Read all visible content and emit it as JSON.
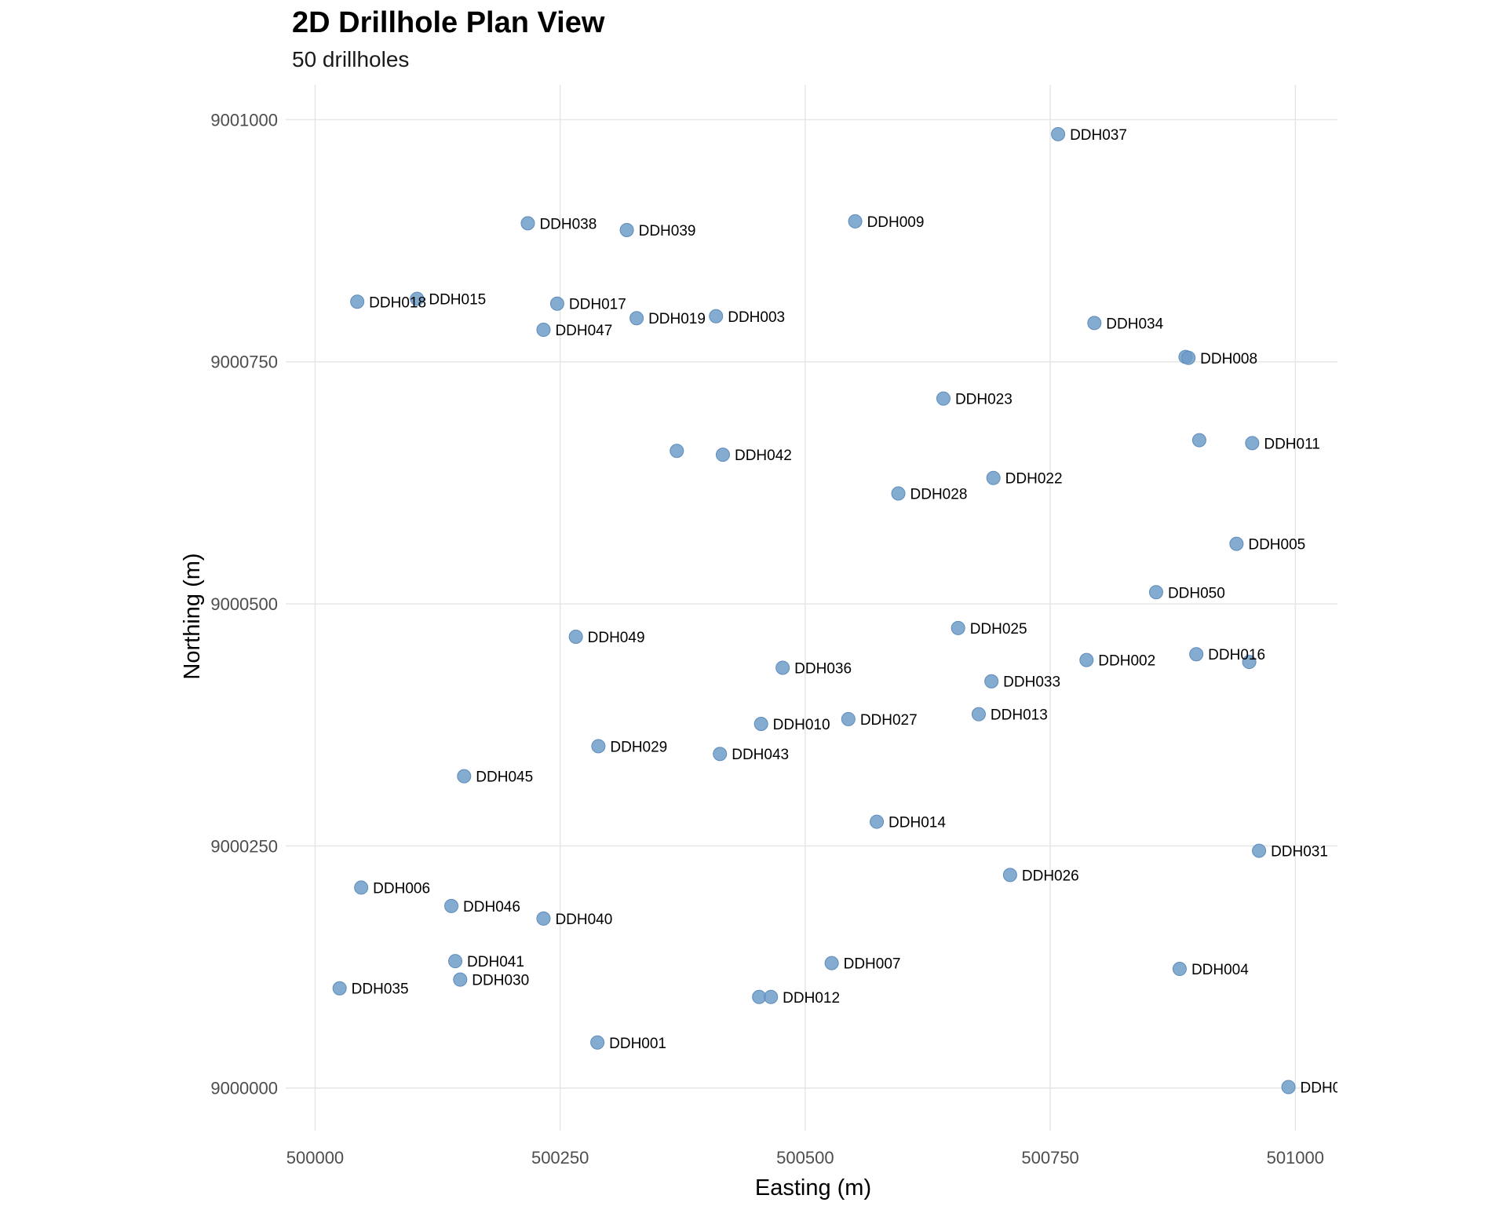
{
  "chart_data": {
    "type": "scatter",
    "title": "2D Drillhole Plan View",
    "subtitle": "50 drillholes",
    "xlabel": "Easting (m)",
    "ylabel": "Northing (m)",
    "xlim": [
      499970,
      501043
    ],
    "ylim": [
      8999956,
      9001036
    ],
    "xticks": [
      500000,
      500250,
      500500,
      500750,
      501000
    ],
    "yticks": [
      9000000,
      9000250,
      9000500,
      9000750,
      9001000
    ],
    "grid": true,
    "legend": "none",
    "color": "#6f9cc8",
    "labeled_points": [
      {
        "label": "DDH001",
        "x": 500288,
        "y": 9000047
      },
      {
        "label": "DDH002",
        "x": 500787,
        "y": 9000442
      },
      {
        "label": "DDH003",
        "x": 500409,
        "y": 9000797
      },
      {
        "label": "DDH004",
        "x": 500882,
        "y": 9000123
      },
      {
        "label": "DDH005",
        "x": 500940,
        "y": 9000562
      },
      {
        "label": "DDH006",
        "x": 500047,
        "y": 9000207
      },
      {
        "label": "DDH007",
        "x": 500527,
        "y": 9000129
      },
      {
        "label": "DDH008",
        "x": 500891,
        "y": 9000754
      },
      {
        "label": "DDH009",
        "x": 500551,
        "y": 9000895
      },
      {
        "label": "DDH010",
        "x": 500455,
        "y": 9000376
      },
      {
        "label": "DDH011",
        "x": 500956,
        "y": 9000666
      },
      {
        "label": "DDH012",
        "x": 500465,
        "y": 9000094
      },
      {
        "label": "DDH013",
        "x": 500677,
        "y": 9000386
      },
      {
        "label": "DDH014",
        "x": 500573,
        "y": 9000275
      },
      {
        "label": "DDH015",
        "x": 500104,
        "y": 9000815
      },
      {
        "label": "DDH016",
        "x": 500899,
        "y": 9000448
      },
      {
        "label": "DDH017",
        "x": 500247,
        "y": 9000810
      },
      {
        "label": "DDH018",
        "x": 500043,
        "y": 9000812
      },
      {
        "label": "DDH019",
        "x": 500328,
        "y": 9000795
      },
      {
        "label": "DDH022",
        "x": 500692,
        "y": 9000630
      },
      {
        "label": "DDH023",
        "x": 500641,
        "y": 9000712
      },
      {
        "label": "DDH025",
        "x": 500656,
        "y": 9000475
      },
      {
        "label": "DDH026",
        "x": 500709,
        "y": 9000220
      },
      {
        "label": "DDH027",
        "x": 500544,
        "y": 9000381
      },
      {
        "label": "DDH028",
        "x": 500595,
        "y": 9000614
      },
      {
        "label": "DDH029",
        "x": 500289,
        "y": 9000353
      },
      {
        "label": "DDH030",
        "x": 500148,
        "y": 9000112
      },
      {
        "label": "DDH031",
        "x": 500963,
        "y": 9000245
      },
      {
        "label": "DDH033",
        "x": 500690,
        "y": 9000420
      },
      {
        "label": "DDH034",
        "x": 500795,
        "y": 9000790
      },
      {
        "label": "DDH035",
        "x": 500025,
        "y": 9000103
      },
      {
        "label": "DDH036",
        "x": 500477,
        "y": 9000434
      },
      {
        "label": "DDH037",
        "x": 500758,
        "y": 9000985
      },
      {
        "label": "DDH038",
        "x": 500217,
        "y": 9000893
      },
      {
        "label": "DDH039",
        "x": 500318,
        "y": 9000886
      },
      {
        "label": "DDH040",
        "x": 500233,
        "y": 9000175
      },
      {
        "label": "DDH041",
        "x": 500143,
        "y": 9000131
      },
      {
        "label": "DDH042",
        "x": 500416,
        "y": 9000654
      },
      {
        "label": "DDH043",
        "x": 500413,
        "y": 9000345
      },
      {
        "label": "DDH045",
        "x": 500152,
        "y": 9000322
      },
      {
        "label": "DDH046",
        "x": 500139,
        "y": 9000188
      },
      {
        "label": "DDH047",
        "x": 500233,
        "y": 9000783
      },
      {
        "label": "DDH049",
        "x": 500266,
        "y": 9000466
      },
      {
        "label": "DDH050",
        "x": 500858,
        "y": 9000512
      },
      {
        "label": "DDH0",
        "x": 500993,
        "y": 9000001
      }
    ],
    "unlabeled_points": [
      {
        "x": 500369,
        "y": 9000658
      },
      {
        "x": 500888,
        "y": 9000755
      },
      {
        "x": 500902,
        "y": 9000669
      },
      {
        "x": 500953,
        "y": 9000440
      },
      {
        "x": 500453,
        "y": 9000094
      }
    ]
  }
}
